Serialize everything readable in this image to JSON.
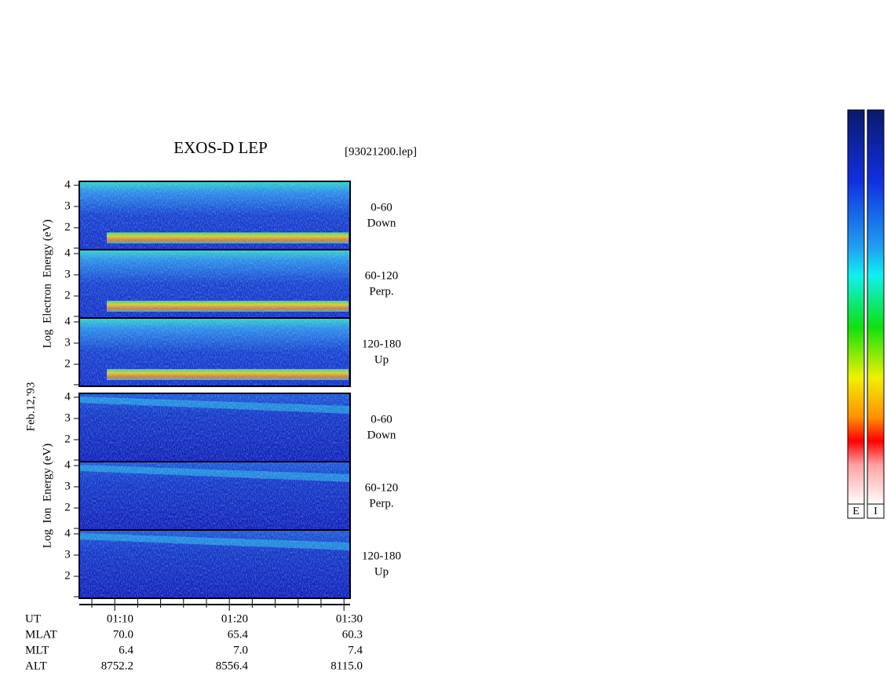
{
  "title": "EXOS-D LEP",
  "file": "[93021200.lep]",
  "date": "Feb.12,'93",
  "yticks": [
    2,
    3,
    4
  ],
  "groups": [
    {
      "ylabel": "Log  Electron  Energy (eV)",
      "panels": [
        {
          "range": "0-60",
          "dir": "Down"
        },
        {
          "range": "60-120",
          "dir": "Perp."
        },
        {
          "range": "120-180",
          "dir": "Up"
        }
      ]
    },
    {
      "ylabel": "Log  Ion  Energy (eV)",
      "panels": [
        {
          "range": "0-60",
          "dir": "Down"
        },
        {
          "range": "60-120",
          "dir": "Perp."
        },
        {
          "range": "120-180",
          "dir": "Up"
        }
      ]
    }
  ],
  "footer": {
    "row_labels": [
      "UT",
      "MLAT",
      "MLT",
      "ALT"
    ],
    "columns": [
      [
        "01:10",
        "70.0",
        "6.4",
        "8752.2"
      ],
      [
        "01:20",
        "65.4",
        "7.0",
        "8556.4"
      ],
      [
        "01:30",
        "60.3",
        "7.4",
        "8115.0"
      ]
    ]
  },
  "colorbar_labels": [
    "E",
    "I"
  ]
}
